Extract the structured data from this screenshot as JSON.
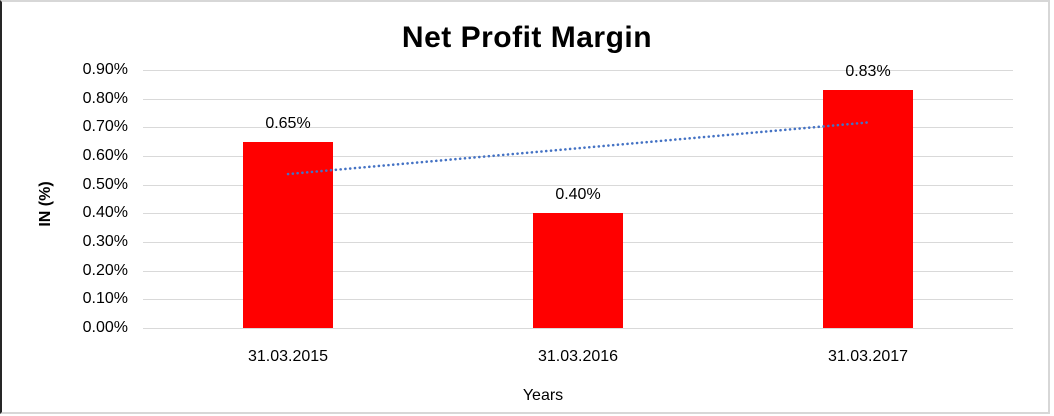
{
  "chart_data": {
    "type": "bar",
    "title": "Net Profit Margin",
    "xlabel": "Years",
    "ylabel": "IN (%)",
    "categories": [
      "31.03.2015",
      "31.03.2016",
      "31.03.2017"
    ],
    "values": [
      0.65,
      0.4,
      0.83
    ],
    "data_labels": [
      "0.65%",
      "0.40%",
      "0.83%"
    ],
    "ylim": [
      0,
      0.9
    ],
    "y_ticks": [
      0,
      0.1,
      0.2,
      0.3,
      0.4,
      0.5,
      0.6,
      0.7,
      0.8,
      0.9
    ],
    "y_tick_labels": [
      "0.00%",
      "0.10%",
      "0.20%",
      "0.30%",
      "0.40%",
      "0.50%",
      "0.60%",
      "0.70%",
      "0.80%",
      "0.90%"
    ],
    "grid": true,
    "legend": "none",
    "colors": {
      "bar": "#FF0000",
      "trendline": "#4472C4",
      "gridline": "#D9D9D9",
      "text": "#000000"
    },
    "trendline": {
      "type": "linear",
      "style": "dotted",
      "start_value": 0.537,
      "end_value": 0.717
    }
  }
}
